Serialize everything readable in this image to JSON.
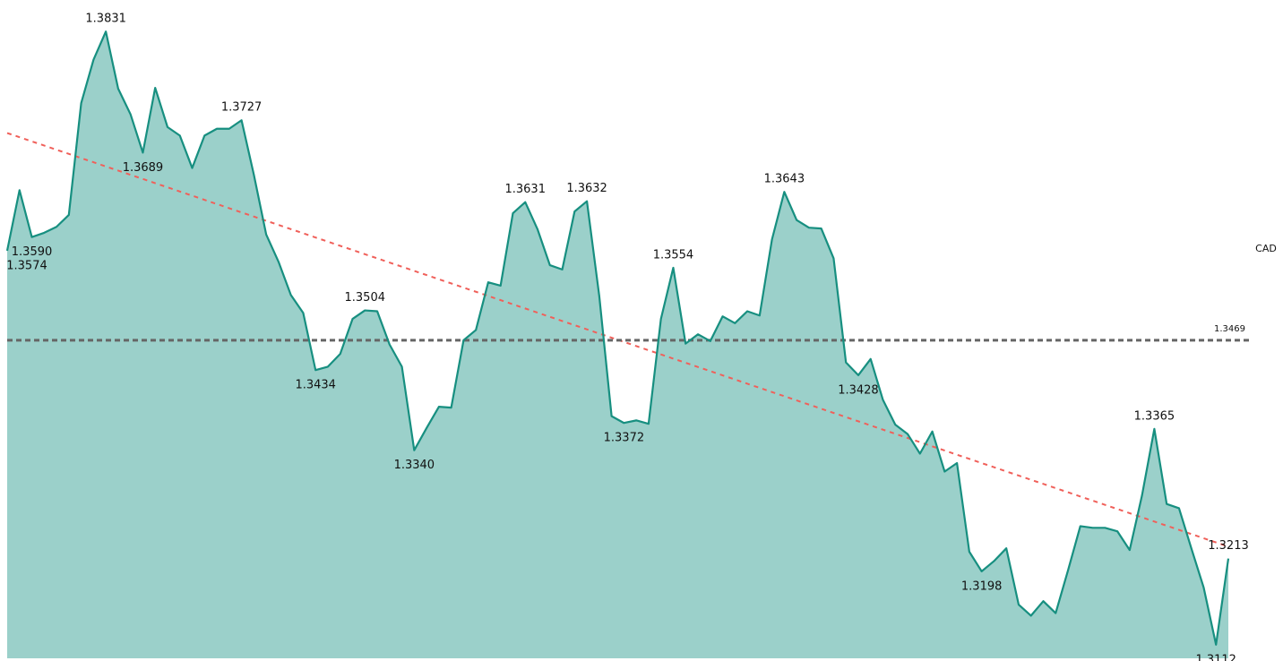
{
  "chart_data": {
    "type": "area",
    "series": [
      {
        "name": "CAD",
        "color": "#178f80",
        "fill": "#9bd0ca",
        "values": [
          1.3574,
          1.3645,
          1.359,
          1.3595,
          1.3602,
          1.3616,
          1.3747,
          1.3798,
          1.3831,
          1.3764,
          1.3734,
          1.3689,
          1.3765,
          1.3719,
          1.3709,
          1.3671,
          1.3709,
          1.3717,
          1.3717,
          1.3727,
          1.3663,
          1.3593,
          1.3561,
          1.3522,
          1.3501,
          1.3434,
          1.3438,
          1.3453,
          1.3494,
          1.3504,
          1.3503,
          1.3464,
          1.3438,
          1.334,
          1.3366,
          1.3391,
          1.339,
          1.3469,
          1.3481,
          1.3537,
          1.3533,
          1.3618,
          1.3631,
          1.3599,
          1.3557,
          1.3552,
          1.362,
          1.3632,
          1.3521,
          1.338,
          1.3372,
          1.3375,
          1.3371,
          1.3494,
          1.3554,
          1.3465,
          1.3476,
          1.3468,
          1.3497,
          1.3489,
          1.3503,
          1.3498,
          1.3587,
          1.3643,
          1.361,
          1.3601,
          1.36,
          1.3565,
          1.3443,
          1.3428,
          1.3447,
          1.3399,
          1.337,
          1.3359,
          1.3336,
          1.3362,
          1.3315,
          1.3325,
          1.3221,
          1.3198,
          1.321,
          1.3225,
          1.3159,
          1.3146,
          1.3163,
          1.3149,
          1.3199,
          1.3251,
          1.3249,
          1.3249,
          1.3245,
          1.3223,
          1.3287,
          1.3365,
          1.3277,
          1.3272,
          1.3225,
          1.3179,
          1.3112,
          1.3213
        ],
        "value_labels": [
          "1.3574",
          null,
          "1.3590",
          null,
          null,
          null,
          null,
          null,
          "1.3831",
          null,
          null,
          "1.3689",
          null,
          null,
          null,
          null,
          null,
          null,
          null,
          "1.3727",
          null,
          null,
          null,
          null,
          null,
          "1.3434",
          null,
          null,
          null,
          "1.3504",
          null,
          null,
          null,
          "1.3340",
          null,
          null,
          null,
          null,
          null,
          null,
          null,
          null,
          "1.3631",
          null,
          null,
          null,
          null,
          "1.3632",
          null,
          null,
          "1.3372",
          null,
          null,
          null,
          "1.3554",
          null,
          null,
          null,
          null,
          null,
          null,
          null,
          null,
          "1.3643",
          null,
          null,
          null,
          null,
          null,
          "1.3428",
          null,
          null,
          null,
          null,
          null,
          null,
          null,
          null,
          null,
          "1.3198",
          null,
          null,
          null,
          null,
          null,
          null,
          null,
          null,
          null,
          null,
          null,
          null,
          null,
          "1.3365",
          null,
          null,
          null,
          null,
          "1.3112",
          "1.3213"
        ]
      }
    ],
    "mean": {
      "value": 1.3469,
      "label": "1.3469",
      "color": "#666666"
    },
    "trend": {
      "values": [
        1.3712,
        1.3227
      ],
      "color": "#f0605a"
    },
    "ylim": [
      1.3096,
      1.3868
    ]
  }
}
